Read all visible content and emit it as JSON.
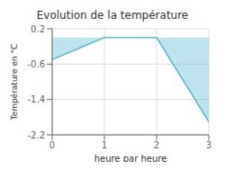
{
  "chart_data": {
    "type": "area",
    "title": "Evolution de la température",
    "xlabel": "heure par heure",
    "ylabel": "Température en °C",
    "x": [
      0,
      1,
      2,
      3
    ],
    "values": [
      -0.5,
      0.0,
      0.0,
      -1.9
    ],
    "color": "#5ab8d4",
    "xlim": [
      0,
      3
    ],
    "ylim": [
      -2.2,
      0.2
    ],
    "xticks": [
      0,
      1,
      2,
      3
    ],
    "yticks": [
      0.2,
      -0.6,
      -1.4,
      -2.2
    ],
    "grid": true
  }
}
